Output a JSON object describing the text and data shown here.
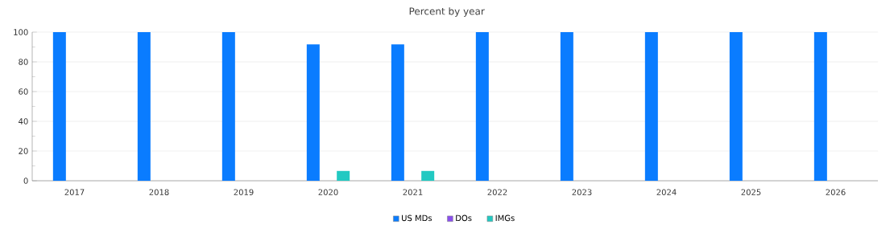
{
  "chart_data": {
    "type": "bar",
    "title": "Percent by year",
    "categories": [
      "2017",
      "2018",
      "2019",
      "2020",
      "2021",
      "2022",
      "2023",
      "2024",
      "2025",
      "2026"
    ],
    "series": [
      {
        "name": "US MDs",
        "color": "#0a7cff",
        "values": [
          100,
          100,
          100,
          91.7,
          91.7,
          100,
          100,
          100,
          100,
          100
        ]
      },
      {
        "name": "DOs",
        "color": "#8a4fee",
        "values": [
          0,
          0,
          0,
          0,
          0,
          0,
          0,
          0,
          0,
          0
        ]
      },
      {
        "name": "IMGs",
        "color": "#22c9c2",
        "values": [
          0,
          0,
          0,
          6.6,
          6.6,
          0,
          0,
          0,
          0,
          0
        ]
      }
    ],
    "ylim": [
      0,
      100
    ],
    "yticks": [
      0,
      20,
      40,
      60,
      80,
      100
    ],
    "grid": "y",
    "legend": "bottom"
  }
}
